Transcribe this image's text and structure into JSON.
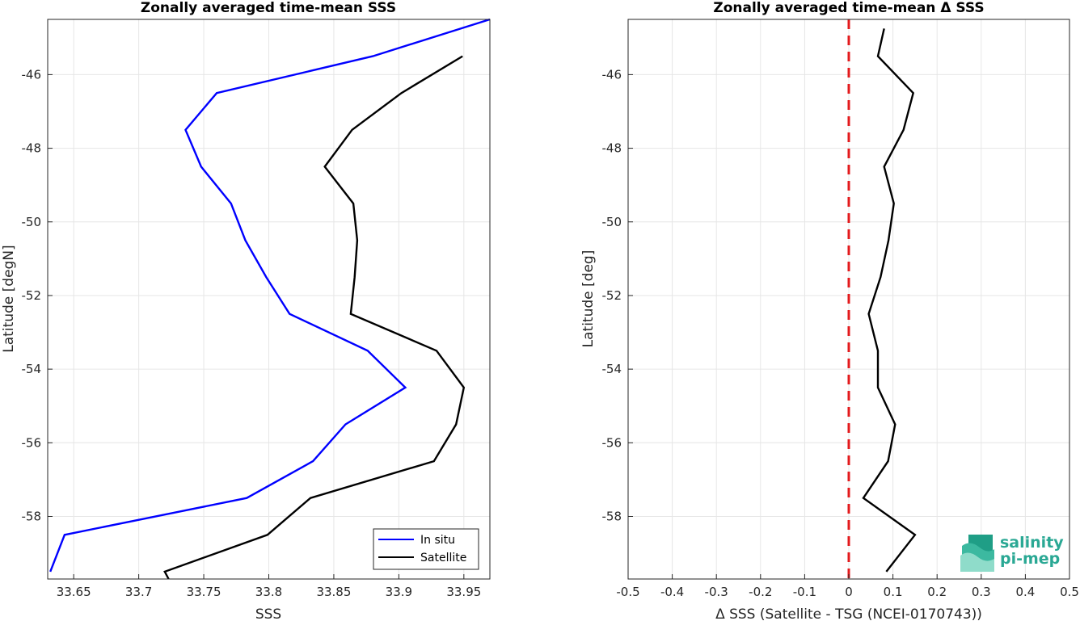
{
  "colors": {
    "insitu": "#0000ff",
    "satellite": "#000000",
    "zero_line": "#e31a1c",
    "grid": "#e6e6e6",
    "axis": "#262626",
    "logo": "#2aa894"
  },
  "logo": {
    "line1": "salinity",
    "line2": "pi-mep"
  },
  "chart_data": [
    {
      "type": "line",
      "title": "Zonally averaged time-mean SSS",
      "xlabel": "SSS",
      "ylabel": "Latitude [degN]",
      "xlim": [
        33.63,
        33.97
      ],
      "ylim": [
        -59.7,
        -44.5
      ],
      "xticks": [
        33.65,
        33.7,
        33.75,
        33.8,
        33.85,
        33.9,
        33.95
      ],
      "xtick_labels": [
        "33.65",
        "33.7",
        "33.75",
        "33.8",
        "33.85",
        "33.9",
        "33.95"
      ],
      "yticks": [
        -46,
        -48,
        -50,
        -52,
        -54,
        -56,
        -58
      ],
      "ytick_labels": [
        "-46",
        "-48",
        "-50",
        "-52",
        "-54",
        "-56",
        "-58"
      ],
      "grid": true,
      "legend_position": "bottom-right",
      "series": [
        {
          "name": "In situ",
          "color": "#0000ff",
          "points": [
            [
              33.97,
              -44.5
            ],
            [
              33.88,
              -45.5
            ],
            [
              33.76,
              -46.5
            ],
            [
              33.736,
              -47.5
            ],
            [
              33.748,
              -48.5
            ],
            [
              33.771,
              -49.5
            ],
            [
              33.782,
              -50.5
            ],
            [
              33.798,
              -51.5
            ],
            [
              33.816,
              -52.5
            ],
            [
              33.876,
              -53.5
            ],
            [
              33.905,
              -54.5
            ],
            [
              33.859,
              -55.5
            ],
            [
              33.834,
              -56.5
            ],
            [
              33.783,
              -57.5
            ],
            [
              33.643,
              -58.5
            ],
            [
              33.632,
              -59.5
            ]
          ]
        },
        {
          "name": "Satellite",
          "color": "#000000",
          "points": [
            [
              33.949,
              -45.5
            ],
            [
              33.902,
              -46.5
            ],
            [
              33.864,
              -47.5
            ],
            [
              33.843,
              -48.5
            ],
            [
              33.865,
              -49.5
            ],
            [
              33.868,
              -50.5
            ],
            [
              33.866,
              -51.5
            ],
            [
              33.863,
              -52.5
            ],
            [
              33.929,
              -53.5
            ],
            [
              33.95,
              -54.5
            ],
            [
              33.944,
              -55.5
            ],
            [
              33.927,
              -56.5
            ],
            [
              33.832,
              -57.5
            ],
            [
              33.799,
              -58.5
            ],
            [
              33.72,
              -59.5
            ],
            [
              33.723,
              -59.7
            ]
          ]
        }
      ]
    },
    {
      "type": "line",
      "title": "Zonally averaged time-mean Δ SSS",
      "xlabel": "Δ SSS (Satellite - TSG (NCEI-0170743))",
      "ylabel": "Latitude [deg]",
      "xlim": [
        -0.5,
        0.5
      ],
      "ylim": [
        -59.7,
        -44.5
      ],
      "xticks": [
        -0.5,
        -0.4,
        -0.3,
        -0.2,
        -0.1,
        0,
        0.1,
        0.2,
        0.3,
        0.4,
        0.5
      ],
      "xtick_labels": [
        "-0.5",
        "-0.4",
        "-0.3",
        "-0.2",
        "-0.1",
        "0",
        "0.1",
        "0.2",
        "0.3",
        "0.4",
        "0.5"
      ],
      "yticks": [
        -46,
        -48,
        -50,
        -52,
        -54,
        -56,
        -58
      ],
      "ytick_labels": [
        "-46",
        "-48",
        "-50",
        "-52",
        "-54",
        "-56",
        "-58"
      ],
      "grid": true,
      "reference_line": {
        "x": 0,
        "style": "dashed",
        "color": "#e31a1c"
      },
      "series": [
        {
          "color": "#000000",
          "points": [
            [
              0.08,
              -44.75
            ],
            [
              0.066,
              -45.5
            ],
            [
              0.146,
              -46.5
            ],
            [
              0.124,
              -47.5
            ],
            [
              0.08,
              -48.5
            ],
            [
              0.102,
              -49.5
            ],
            [
              0.09,
              -50.5
            ],
            [
              0.072,
              -51.5
            ],
            [
              0.045,
              -52.5
            ],
            [
              0.066,
              -53.5
            ],
            [
              0.066,
              -54.5
            ],
            [
              0.105,
              -55.5
            ],
            [
              0.089,
              -56.5
            ],
            [
              0.033,
              -57.5
            ],
            [
              0.15,
              -58.5
            ],
            [
              0.085,
              -59.5
            ]
          ]
        }
      ]
    }
  ]
}
